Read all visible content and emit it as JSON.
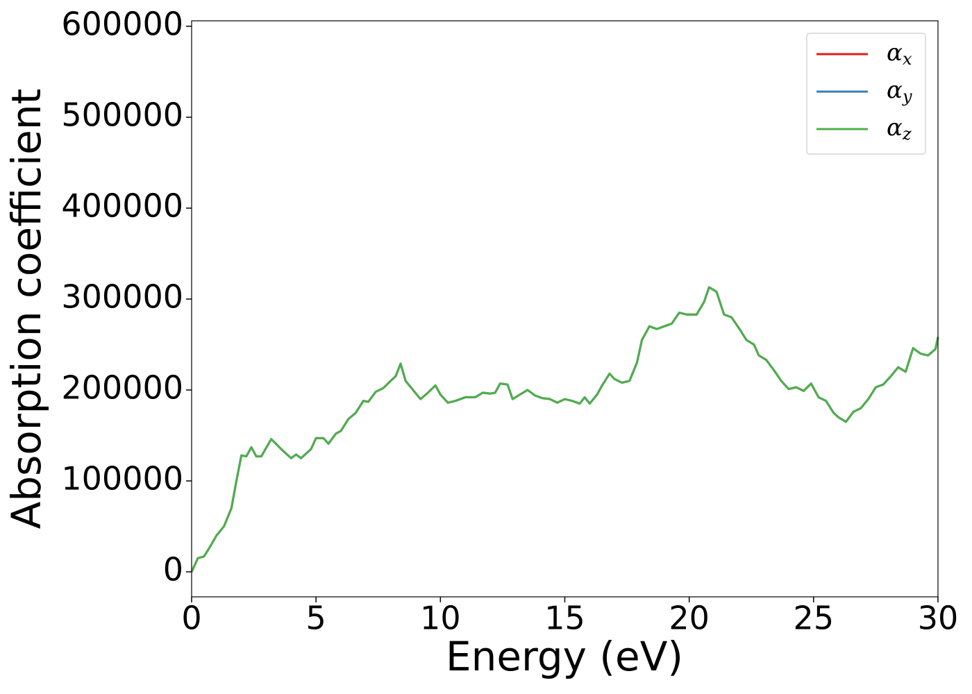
{
  "chart_data": {
    "type": "line",
    "xlabel": "Energy (eV)",
    "ylabel": "Absorption coefficient",
    "x": [
      0,
      0.25,
      0.5,
      0.75,
      1.0,
      1.3,
      1.6,
      1.8,
      2.0,
      2.2,
      2.4,
      2.6,
      2.8,
      3.2,
      3.6,
      4.0,
      4.2,
      4.4,
      4.8,
      5.0,
      5.3,
      5.5,
      5.8,
      6.0,
      6.3,
      6.6,
      6.9,
      7.1,
      7.4,
      7.7,
      8.0,
      8.2,
      8.4,
      8.6,
      8.9,
      9.2,
      9.5,
      9.8,
      10.0,
      10.3,
      10.6,
      11.0,
      11.4,
      11.7,
      12.0,
      12.2,
      12.4,
      12.7,
      12.9,
      13.2,
      13.5,
      13.8,
      14.1,
      14.4,
      14.7,
      15.0,
      15.3,
      15.6,
      15.8,
      16.0,
      16.3,
      16.5,
      16.8,
      17.0,
      17.3,
      17.6,
      17.9,
      18.1,
      18.4,
      18.7,
      19.0,
      19.3,
      19.6,
      19.9,
      20.3,
      20.6,
      20.8,
      21.1,
      21.4,
      21.7,
      22.0,
      22.3,
      22.6,
      22.8,
      23.1,
      23.4,
      23.7,
      24.0,
      24.3,
      24.6,
      24.9,
      25.2,
      25.5,
      25.8,
      26.0,
      26.3,
      26.6,
      26.9,
      27.2,
      27.5,
      27.8,
      28.1,
      28.4,
      28.7,
      29.0,
      29.3,
      29.6,
      29.9,
      30.0
    ],
    "series": [
      {
        "name": "αx",
        "color": "#e41a1c",
        "values": [
          0,
          15000,
          17000,
          28000,
          40000,
          50000,
          70000,
          100000,
          128000,
          127000,
          137000,
          127000,
          127000,
          146000,
          135000,
          125000,
          129000,
          125000,
          135000,
          147000,
          147000,
          141000,
          152000,
          155000,
          168000,
          175000,
          188000,
          187000,
          198000,
          202000,
          210000,
          215000,
          229000,
          210000,
          200000,
          190000,
          197000,
          205000,
          195000,
          186000,
          188000,
          192000,
          192000,
          197000,
          196000,
          197000,
          207000,
          206000,
          190000,
          195000,
          200000,
          194000,
          191000,
          190000,
          186000,
          190000,
          188000,
          185000,
          192000,
          185000,
          195000,
          205000,
          218000,
          212000,
          208000,
          210000,
          230000,
          255000,
          270000,
          267000,
          270000,
          273000,
          285000,
          283000,
          283000,
          297000,
          313000,
          308000,
          283000,
          280000,
          268000,
          255000,
          250000,
          238000,
          233000,
          222000,
          210000,
          201000,
          203000,
          199000,
          207000,
          192000,
          188000,
          175000,
          170000,
          165000,
          176000,
          180000,
          190000,
          203000,
          206000,
          215000,
          225000,
          220000,
          246000,
          240000,
          238000,
          245000,
          258000
        ]
      },
      {
        "name": "αy",
        "color": "#377eb8",
        "values": [
          0,
          15000,
          17000,
          28000,
          40000,
          50000,
          70000,
          100000,
          128000,
          127000,
          137000,
          127000,
          127000,
          146000,
          135000,
          125000,
          129000,
          125000,
          135000,
          147000,
          147000,
          141000,
          152000,
          155000,
          168000,
          175000,
          188000,
          187000,
          198000,
          202000,
          210000,
          215000,
          229000,
          210000,
          200000,
          190000,
          197000,
          205000,
          195000,
          186000,
          188000,
          192000,
          192000,
          197000,
          196000,
          197000,
          207000,
          206000,
          190000,
          195000,
          200000,
          194000,
          191000,
          190000,
          186000,
          190000,
          188000,
          185000,
          192000,
          185000,
          195000,
          205000,
          218000,
          212000,
          208000,
          210000,
          230000,
          255000,
          270000,
          267000,
          270000,
          273000,
          285000,
          283000,
          283000,
          297000,
          313000,
          308000,
          283000,
          280000,
          268000,
          255000,
          250000,
          238000,
          233000,
          222000,
          210000,
          201000,
          203000,
          199000,
          207000,
          192000,
          188000,
          175000,
          170000,
          165000,
          176000,
          180000,
          190000,
          203000,
          206000,
          215000,
          225000,
          220000,
          246000,
          240000,
          238000,
          245000,
          258000
        ]
      },
      {
        "name": "αz",
        "color": "#4daf4a",
        "values": [
          0,
          15000,
          17000,
          28000,
          40000,
          50000,
          70000,
          100000,
          128000,
          127000,
          137000,
          127000,
          127000,
          146000,
          135000,
          125000,
          129000,
          125000,
          135000,
          147000,
          147000,
          141000,
          152000,
          155000,
          168000,
          175000,
          188000,
          187000,
          198000,
          202000,
          210000,
          215000,
          229000,
          210000,
          200000,
          190000,
          197000,
          205000,
          195000,
          186000,
          188000,
          192000,
          192000,
          197000,
          196000,
          197000,
          207000,
          206000,
          190000,
          195000,
          200000,
          194000,
          191000,
          190000,
          186000,
          190000,
          188000,
          185000,
          192000,
          185000,
          195000,
          205000,
          218000,
          212000,
          208000,
          210000,
          230000,
          255000,
          270000,
          267000,
          270000,
          273000,
          285000,
          283000,
          283000,
          297000,
          313000,
          308000,
          283000,
          280000,
          268000,
          255000,
          250000,
          238000,
          233000,
          222000,
          210000,
          201000,
          203000,
          199000,
          207000,
          192000,
          188000,
          175000,
          170000,
          165000,
          176000,
          180000,
          190000,
          203000,
          206000,
          215000,
          225000,
          220000,
          246000,
          240000,
          238000,
          245000,
          258000
        ]
      }
    ],
    "xlim": [
      0,
      30
    ],
    "xticks": [
      0,
      5,
      10,
      15,
      20,
      25,
      30
    ],
    "ylim": [
      -27500,
      606000
    ],
    "yticks": [
      0,
      100000,
      200000,
      300000,
      400000,
      500000,
      600000
    ],
    "grid": false,
    "legend": "upper right"
  }
}
